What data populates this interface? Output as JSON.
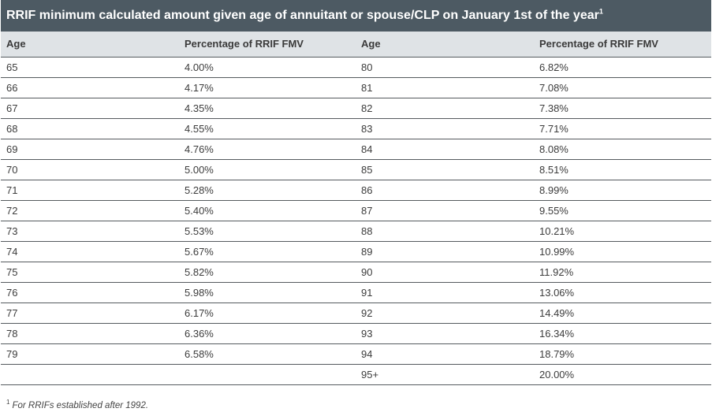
{
  "title": {
    "text": "RRIF minimum calculated amount given age of annuitant or spouse/CLP on January 1st of the year",
    "footnote_marker": "1"
  },
  "table": {
    "headers": [
      "Age",
      "Percentage of RRIF FMV",
      "Age",
      "Percentage of RRIF FMV"
    ],
    "rows": [
      [
        "65",
        "4.00%",
        "80",
        "6.82%"
      ],
      [
        "66",
        "4.17%",
        "81",
        "7.08%"
      ],
      [
        "67",
        "4.35%",
        "82",
        "7.38%"
      ],
      [
        "68",
        "4.55%",
        "83",
        "7.71%"
      ],
      [
        "69",
        "4.76%",
        "84",
        "8.08%"
      ],
      [
        "70",
        "5.00%",
        "85",
        "8.51%"
      ],
      [
        "71",
        "5.28%",
        "86",
        "8.99%"
      ],
      [
        "72",
        "5.40%",
        "87",
        "9.55%"
      ],
      [
        "73",
        "5.53%",
        "88",
        "10.21%"
      ],
      [
        "74",
        "5.67%",
        "89",
        "10.99%"
      ],
      [
        "75",
        "5.82%",
        "90",
        "11.92%"
      ],
      [
        "76",
        "5.98%",
        "91",
        "13.06%"
      ],
      [
        "77",
        "6.17%",
        "92",
        "14.49%"
      ],
      [
        "78",
        "6.36%",
        "93",
        "16.34%"
      ],
      [
        "79",
        "6.58%",
        "94",
        "18.79%"
      ],
      [
        "",
        "",
        "95+",
        "20.00%"
      ]
    ]
  },
  "footnote": {
    "marker": "1",
    "text": "For RRIFs established after 1992."
  },
  "colors": {
    "title_bar": "#4d5a63",
    "header_row": "#dfe3e6",
    "row_divider": "#555a5e"
  }
}
